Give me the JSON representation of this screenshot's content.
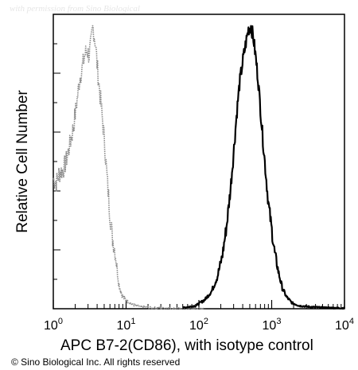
{
  "watermark": "with permission from Sino Biological",
  "copyright": "© Sino Biological Inc. All rights reserved",
  "chart_data": {
    "type": "line",
    "title": "",
    "xlabel": "APC  B7-2(CD86), with isotype control",
    "ylabel": "Relative Cell Number",
    "xscale": "log",
    "xlim": [
      1,
      10000
    ],
    "ylim": [
      0,
      100
    ],
    "x_ticks": [
      {
        "base": "10",
        "exp": "0",
        "value": 1
      },
      {
        "base": "10",
        "exp": "1",
        "value": 10
      },
      {
        "base": "10",
        "exp": "2",
        "value": 100
      },
      {
        "base": "10",
        "exp": "3",
        "value": 1000
      },
      {
        "base": "10",
        "exp": "4",
        "value": 10000
      }
    ],
    "grid": false,
    "legend": "none",
    "series": [
      {
        "style": "dotted-gray",
        "color": "#8a8a8a",
        "points": [
          [
            1.0,
            44
          ],
          [
            1.1,
            43
          ],
          [
            1.2,
            46
          ],
          [
            1.35,
            47
          ],
          [
            1.5,
            50
          ],
          [
            1.7,
            56
          ],
          [
            1.9,
            62
          ],
          [
            2.1,
            70
          ],
          [
            2.3,
            78
          ],
          [
            2.5,
            82
          ],
          [
            2.7,
            86
          ],
          [
            2.9,
            88
          ],
          [
            3.1,
            86
          ],
          [
            3.3,
            90
          ],
          [
            3.5,
            96
          ],
          [
            3.8,
            90
          ],
          [
            4.1,
            80
          ],
          [
            4.5,
            70
          ],
          [
            5.0,
            58
          ],
          [
            5.5,
            44
          ],
          [
            6.0,
            32
          ],
          [
            6.5,
            24
          ],
          [
            7.0,
            20
          ],
          [
            7.5,
            14
          ],
          [
            8.0,
            8
          ],
          [
            9.0,
            4
          ],
          [
            10.0,
            3
          ],
          [
            12.0,
            1.5
          ],
          [
            15.0,
            0.8
          ],
          [
            20.0,
            0.4
          ],
          [
            30.0,
            0.2
          ],
          [
            60.0,
            0.1
          ],
          [
            120.0,
            0.1
          ]
        ]
      },
      {
        "style": "solid-black",
        "color": "#000000",
        "points": [
          [
            60,
            0.3
          ],
          [
            90,
            1
          ],
          [
            120,
            3
          ],
          [
            150,
            6
          ],
          [
            180,
            11
          ],
          [
            210,
            18
          ],
          [
            240,
            28
          ],
          [
            270,
            40
          ],
          [
            300,
            53
          ],
          [
            330,
            66
          ],
          [
            360,
            76
          ],
          [
            400,
            84
          ],
          [
            440,
            90
          ],
          [
            480,
            95
          ],
          [
            520,
            96
          ],
          [
            560,
            92
          ],
          [
            600,
            86
          ],
          [
            650,
            78
          ],
          [
            700,
            68
          ],
          [
            760,
            57
          ],
          [
            830,
            46
          ],
          [
            900,
            36
          ],
          [
            1000,
            27
          ],
          [
            1100,
            19
          ],
          [
            1250,
            12
          ],
          [
            1400,
            7
          ],
          [
            1600,
            4
          ],
          [
            1900,
            2
          ],
          [
            2400,
            1
          ],
          [
            3500,
            0.6
          ],
          [
            5000,
            0.4
          ],
          [
            7000,
            0.3
          ],
          [
            10000,
            0.2
          ]
        ]
      }
    ]
  }
}
